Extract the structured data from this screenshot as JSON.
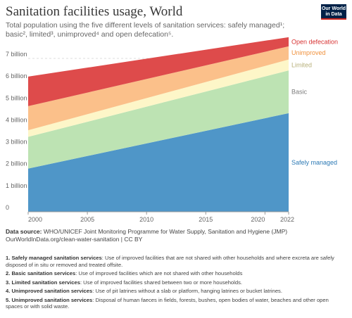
{
  "header": {
    "title": "Sanitation facilities usage, World",
    "subtitle": "Total population using the five different levels of sanitation services: safely managed¹; basic², limited³, unimproved⁴ and open defecation⁵.",
    "logo_text": "Our World in Data"
  },
  "chart_data": {
    "type": "area",
    "stacked": true,
    "x": [
      2000,
      2022
    ],
    "x_ticks": [
      "2000",
      "2005",
      "2010",
      "2015",
      "2020",
      "2022"
    ],
    "y_ticks": [
      "0",
      "1 billion",
      "2 billion",
      "3 billion",
      "4 billion",
      "5 billion",
      "6 billion",
      "7 billion"
    ],
    "ylim": [
      0,
      7.9
    ],
    "y_unit": "billion",
    "grid": true,
    "legend_position": "right",
    "series": [
      {
        "name": "Safely managed",
        "values": [
          1.97,
          4.5
        ],
        "color": "#4f96c8",
        "label_color": "#2d7ab5"
      },
      {
        "name": "Basic",
        "values": [
          1.45,
          1.95
        ],
        "color": "#bde3b3",
        "label_color": "#7c7c7c"
      },
      {
        "name": "Limited",
        "values": [
          0.3,
          0.5
        ],
        "color": "#fdf6c8",
        "label_color": "#b7b07a"
      },
      {
        "name": "Unimproved",
        "values": [
          1.1,
          0.6
        ],
        "color": "#fbc08a",
        "label_color": "#f0913c"
      },
      {
        "name": "Open defecation",
        "values": [
          1.35,
          0.42
        ],
        "color": "#de4b4b",
        "label_color": "#d73232"
      }
    ]
  },
  "footer": {
    "source_label": "Data source:",
    "source_text": "WHO/UNICEF Joint Monitoring Programme for Water Supply, Sanitation and Hygiene (JMP)",
    "source_link": "OurWorldInData.org/clean-water-sanitation | CC BY",
    "notes": [
      {
        "title": "1. Safely managed sanitation services",
        "text": ": Use of improved facilities that are not shared with other households and where excreta are safely disposed of in situ or removed and treated offsite."
      },
      {
        "title": "2. Basic sanitation services",
        "text": ": Use of improved facilities which are not shared with other households"
      },
      {
        "title": "3. Limited sanitation services",
        "text": ": Use of improved facilities shared between two or more households."
      },
      {
        "title": "4. Unimproved sanitation services",
        "text": ": Use of pit latrines without a slab or platform, hanging latrines or bucket latrines."
      },
      {
        "title": "5. Unimproved sanitation services",
        "text": ": Disposal of human faeces in fields, forests, bushes, open bodies of water, beaches and other open spaces or with solid waste."
      }
    ]
  }
}
